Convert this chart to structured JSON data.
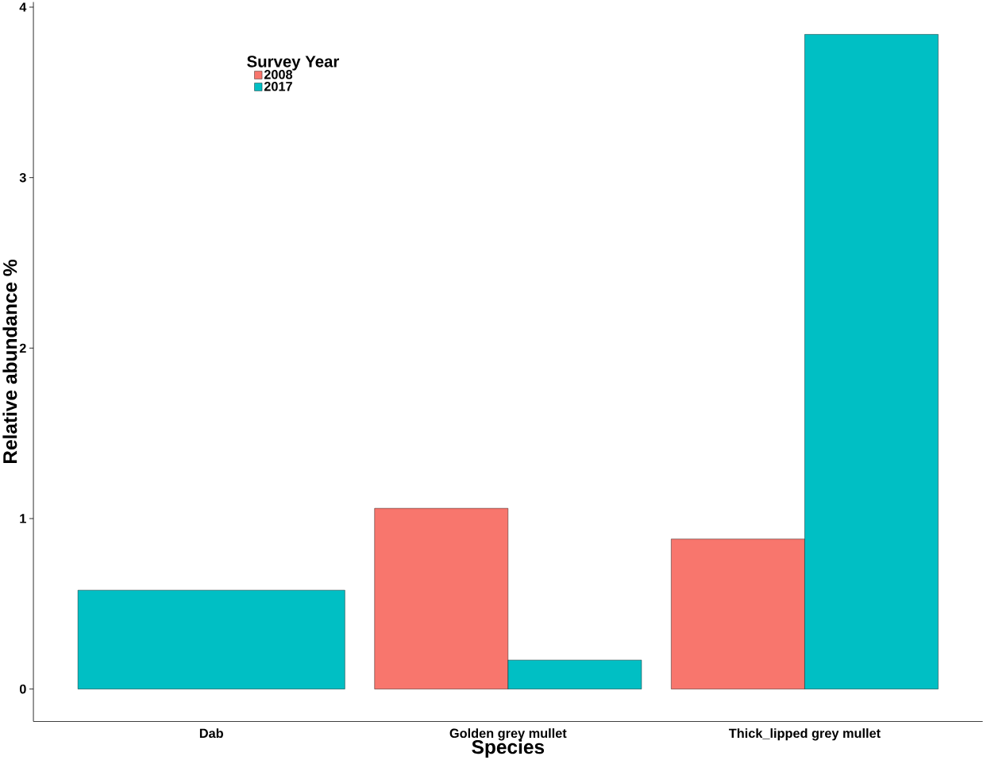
{
  "chart_data": {
    "type": "bar",
    "xlabel": "Species",
    "ylabel": "Relative abundance %",
    "legend_title": "Survey Year",
    "categories": [
      "Dab",
      "Golden grey mullet",
      "Thick_lipped grey mullet"
    ],
    "series": [
      {
        "name": "2008",
        "color": "#f8766d",
        "values": [
          null,
          1.06,
          0.88
        ]
      },
      {
        "name": "2017",
        "color": "#00bfc4",
        "values": [
          0.58,
          0.17,
          3.84
        ]
      }
    ],
    "ylim": [
      -0.19,
      4.03
    ],
    "yticks": [
      0,
      1,
      2,
      3,
      4
    ],
    "grid": false,
    "legend": "top left"
  }
}
